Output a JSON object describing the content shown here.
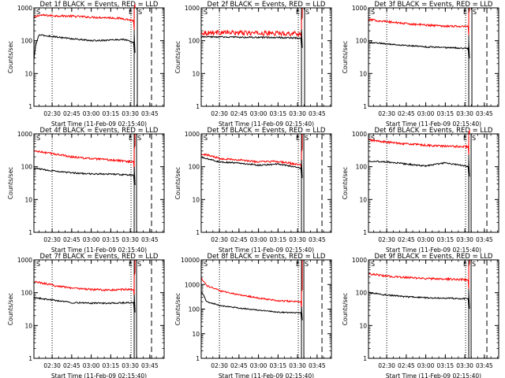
{
  "chart_data": [
    {
      "type": "line",
      "title": "Det 1f BLACK = Events, RED = LLD",
      "xlabel": "Start Time (11-Feb-09 02:15:40)",
      "ylabel": "Counts/sec",
      "yscale": "log",
      "ylim": [
        1,
        1000
      ],
      "xlim": [
        "02:16",
        "03:56"
      ],
      "x_ticks": [
        "02:30",
        "02:45",
        "03:00",
        "03:15",
        "03:30",
        "03:45"
      ],
      "y_ticks": [
        "1",
        "10",
        "100",
        "1000"
      ],
      "event_markers": [
        "S",
        "E",
        "S"
      ],
      "series": [
        {
          "color": "#ff0000",
          "x": [
            "02:16",
            "02:20",
            "02:30",
            "02:45",
            "03:00",
            "03:15",
            "03:25",
            "03:33"
          ],
          "values": [
            500,
            600,
            580,
            560,
            520,
            500,
            470,
            400
          ]
        },
        {
          "color": "#000000",
          "x": [
            "02:16",
            "02:20",
            "02:30",
            "02:45",
            "03:00",
            "03:15",
            "03:25",
            "03:33"
          ],
          "values": [
            25,
            150,
            135,
            115,
            100,
            105,
            110,
            85
          ]
        }
      ]
    },
    {
      "type": "line",
      "title": "Det 2f BLACK = Events, RED = LLD",
      "xlabel": "Start Time (11-Feb-09 02:15:40)",
      "ylabel": "Counts/sec",
      "yscale": "log",
      "ylim": [
        1,
        1000
      ],
      "xlim": [
        "02:16",
        "03:56"
      ],
      "x_ticks": [
        "02:30",
        "02:45",
        "03:00",
        "03:15",
        "03:30",
        "03:45"
      ],
      "y_ticks": [
        "1",
        "10",
        "100",
        "1000"
      ],
      "event_markers": [
        "S",
        "E",
        "S"
      ],
      "series": [
        {
          "color": "#ff0000",
          "x": [
            "02:16",
            "02:30",
            "02:45",
            "03:00",
            "03:15",
            "03:33"
          ],
          "values": [
            175,
            180,
            175,
            170,
            170,
            165
          ]
        },
        {
          "color": "#000000",
          "x": [
            "02:16",
            "02:30",
            "02:45",
            "03:00",
            "03:15",
            "03:33"
          ],
          "values": [
            130,
            130,
            128,
            125,
            125,
            120
          ]
        }
      ]
    },
    {
      "type": "line",
      "title": "Det 3f BLACK = Events, RED = LLD",
      "xlabel": "Start Time (11-Feb-09 02:15:40)",
      "ylabel": "Counts/sec",
      "yscale": "log",
      "ylim": [
        1,
        1000
      ],
      "xlim": [
        "02:16",
        "03:56"
      ],
      "x_ticks": [
        "02:30",
        "02:45",
        "03:00",
        "03:15",
        "03:30",
        "03:45"
      ],
      "y_ticks": [
        "1",
        "10",
        "100",
        "1000"
      ],
      "event_markers": [
        "S",
        "E",
        "S"
      ],
      "series": [
        {
          "color": "#ff0000",
          "x": [
            "02:16",
            "02:30",
            "02:45",
            "03:00",
            "03:15",
            "03:33"
          ],
          "values": [
            440,
            380,
            330,
            300,
            280,
            270
          ]
        },
        {
          "color": "#000000",
          "x": [
            "02:16",
            "02:30",
            "02:45",
            "03:00",
            "03:15",
            "03:33"
          ],
          "values": [
            90,
            80,
            72,
            65,
            62,
            58
          ]
        }
      ]
    },
    {
      "type": "line",
      "title": "Det 4f BLACK = Events, RED = LLD",
      "xlabel": "Start Time (11-Feb-09 02:15:40)",
      "ylabel": "Counts/sec",
      "yscale": "log",
      "ylim": [
        1,
        1000
      ],
      "xlim": [
        "02:16",
        "03:56"
      ],
      "x_ticks": [
        "02:30",
        "02:45",
        "03:00",
        "03:15",
        "03:30",
        "03:45"
      ],
      "y_ticks": [
        "1",
        "10",
        "100",
        "1000"
      ],
      "event_markers": [
        "S",
        "E",
        "S"
      ],
      "series": [
        {
          "color": "#ff0000",
          "x": [
            "02:16",
            "02:30",
            "02:45",
            "03:00",
            "03:15",
            "03:33"
          ],
          "values": [
            300,
            250,
            200,
            175,
            160,
            140
          ]
        },
        {
          "color": "#000000",
          "x": [
            "02:16",
            "02:30",
            "02:45",
            "03:00",
            "03:15",
            "03:33"
          ],
          "values": [
            90,
            75,
            65,
            60,
            60,
            55
          ]
        }
      ]
    },
    {
      "type": "line",
      "title": "Det 5f BLACK = Events, RED = LLD",
      "xlabel": "Start Time (11-Feb-09 02:15:40)",
      "ylabel": "Counts/sec",
      "yscale": "log",
      "ylim": [
        1,
        1000
      ],
      "xlim": [
        "02:16",
        "03:56"
      ],
      "x_ticks": [
        "02:30",
        "02:45",
        "03:00",
        "03:15",
        "03:30",
        "03:45"
      ],
      "y_ticks": [
        "1",
        "10",
        "100",
        "1000"
      ],
      "event_markers": [
        "S",
        "E",
        "S"
      ],
      "series": [
        {
          "color": "#ff0000",
          "x": [
            "02:16",
            "02:30",
            "02:45",
            "03:00",
            "03:15",
            "03:33"
          ],
          "values": [
            250,
            180,
            160,
            140,
            145,
            110
          ]
        },
        {
          "color": "#000000",
          "x": [
            "02:16",
            "02:30",
            "02:45",
            "03:00",
            "03:15",
            "03:33"
          ],
          "values": [
            190,
            140,
            130,
            110,
            120,
            90
          ]
        }
      ]
    },
    {
      "type": "line",
      "title": "Det 6f BLACK = Events, RED = LLD",
      "xlabel": "Start Time (11-Feb-09 02:15:40)",
      "ylabel": "Counts/sec",
      "yscale": "log",
      "ylim": [
        1,
        1000
      ],
      "xlim": [
        "02:16",
        "03:56"
      ],
      "x_ticks": [
        "02:30",
        "02:45",
        "03:00",
        "03:15",
        "03:30",
        "03:45"
      ],
      "y_ticks": [
        "1",
        "10",
        "100",
        "1000"
      ],
      "event_markers": [
        "S",
        "E",
        "S"
      ],
      "series": [
        {
          "color": "#ff0000",
          "x": [
            "02:16",
            "02:30",
            "02:45",
            "03:00",
            "03:15",
            "03:33"
          ],
          "values": [
            650,
            560,
            500,
            450,
            420,
            410
          ]
        },
        {
          "color": "#000000",
          "x": [
            "02:16",
            "02:30",
            "02:45",
            "03:00",
            "03:15",
            "03:33"
          ],
          "values": [
            150,
            140,
            120,
            105,
            130,
            100
          ]
        }
      ]
    },
    {
      "type": "line",
      "title": "Det 7f BLACK = Events, RED = LLD",
      "xlabel": "Start Time (11-Feb-09 02:15:40)",
      "ylabel": "Counts/sec",
      "yscale": "log",
      "ylim": [
        1,
        1000
      ],
      "xlim": [
        "02:16",
        "03:56"
      ],
      "x_ticks": [
        "02:30",
        "02:45",
        "03:00",
        "03:15",
        "03:30",
        "03:45"
      ],
      "y_ticks": [
        "1",
        "10",
        "100",
        "1000"
      ],
      "event_markers": [
        "S",
        "E",
        "S"
      ],
      "series": [
        {
          "color": "#ff0000",
          "x": [
            "02:16",
            "02:30",
            "02:45",
            "03:00",
            "03:15",
            "03:33"
          ],
          "values": [
            220,
            170,
            140,
            125,
            120,
            130
          ]
        },
        {
          "color": "#000000",
          "x": [
            "02:16",
            "02:30",
            "02:45",
            "03:00",
            "03:15",
            "03:33"
          ],
          "values": [
            70,
            60,
            50,
            48,
            48,
            50
          ]
        }
      ]
    },
    {
      "type": "line",
      "title": "Det 8f BLACK = Events, RED = LLD",
      "xlabel": "Start Time (11-Feb-09 02:15:40)",
      "ylabel": "Counts/sec",
      "yscale": "log",
      "ylim": [
        1,
        10000
      ],
      "xlim": [
        "02:16",
        "03:56"
      ],
      "x_ticks": [
        "02:30",
        "02:45",
        "03:00",
        "03:15",
        "03:30",
        "03:45"
      ],
      "y_ticks": [
        "1",
        "10",
        "100",
        "1000",
        "10000"
      ],
      "event_markers": [
        "S",
        "E",
        "S"
      ],
      "series": [
        {
          "color": "#ff0000",
          "x": [
            "02:16",
            "02:20",
            "02:30",
            "02:45",
            "03:00",
            "03:15",
            "03:33"
          ],
          "values": [
            1800,
            900,
            550,
            380,
            280,
            220,
            200
          ]
        },
        {
          "color": "#000000",
          "x": [
            "02:16",
            "02:20",
            "02:30",
            "02:45",
            "03:00",
            "03:15",
            "03:33"
          ],
          "values": [
            500,
            200,
            140,
            110,
            90,
            75,
            70
          ]
        }
      ]
    },
    {
      "type": "line",
      "title": "Det 9f BLACK = Events, RED = LLD",
      "xlabel": "Start Time (11-Feb-09 02:15:40)",
      "ylabel": "Counts/sec",
      "yscale": "log",
      "ylim": [
        1,
        1000
      ],
      "xlim": [
        "02:16",
        "03:56"
      ],
      "x_ticks": [
        "02:30",
        "02:45",
        "03:00",
        "03:15",
        "03:30",
        "03:45"
      ],
      "y_ticks": [
        "1",
        "10",
        "100",
        "1000"
      ],
      "event_markers": [
        "S",
        "E",
        "S"
      ],
      "series": [
        {
          "color": "#ff0000",
          "x": [
            "02:16",
            "02:30",
            "02:45",
            "03:00",
            "03:15",
            "03:33"
          ],
          "values": [
            380,
            320,
            290,
            270,
            260,
            250
          ]
        },
        {
          "color": "#000000",
          "x": [
            "02:16",
            "02:30",
            "02:45",
            "03:00",
            "03:15",
            "03:33"
          ],
          "values": [
            100,
            85,
            75,
            70,
            68,
            65
          ]
        }
      ]
    }
  ]
}
